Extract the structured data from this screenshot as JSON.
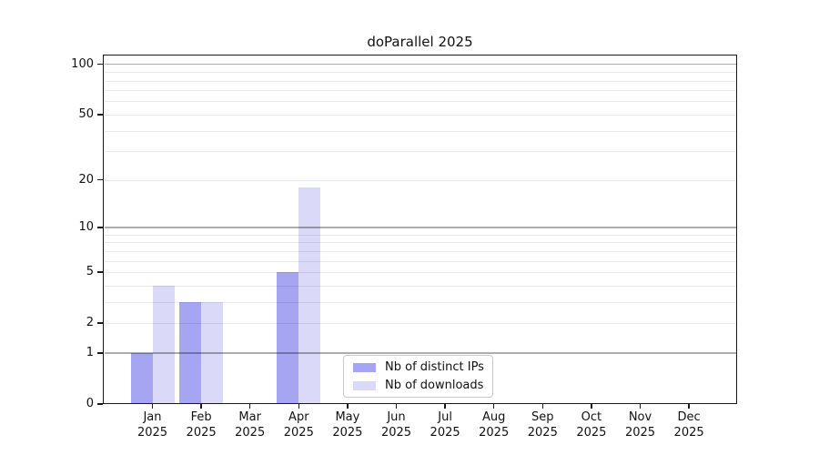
{
  "chart_data": {
    "type": "bar",
    "title": "doParallel 2025",
    "categories": [
      "Jan",
      "Feb",
      "Mar",
      "Apr",
      "May",
      "Jun",
      "Jul",
      "Aug",
      "Sep",
      "Oct",
      "Nov",
      "Dec"
    ],
    "category_year": "2025",
    "series": [
      {
        "name": "Nb of distinct IPs",
        "color": "#a5a5f2",
        "values": [
          1,
          3,
          0,
          5,
          0,
          0,
          0,
          0,
          0,
          0,
          0,
          0
        ]
      },
      {
        "name": "Nb of downloads",
        "color": "#dadaf8",
        "values": [
          4,
          3,
          0,
          18,
          0,
          0,
          0,
          0,
          0,
          0,
          0,
          0
        ]
      }
    ],
    "y_axis": {
      "scale": "log10(1+value)",
      "tick_values": [
        0,
        1,
        2,
        5,
        10,
        20,
        50,
        100
      ],
      "minor_grid_values": [
        2,
        3,
        4,
        5,
        6,
        7,
        8,
        9,
        20,
        30,
        40,
        50,
        60,
        70,
        80,
        90
      ],
      "decade_grid_values": [
        1,
        10,
        100
      ],
      "ylim": [
        0,
        100
      ]
    },
    "xlabel": "",
    "ylabel": "",
    "grid": true,
    "legend_position": "bottom-center-inside",
    "colors": {
      "grid_minor": "rgba(0,0,0,0.085)",
      "grid_decade": "rgba(0,0,0,0.32)",
      "axis": "#1a1a1a",
      "background": "#ffffff"
    }
  }
}
